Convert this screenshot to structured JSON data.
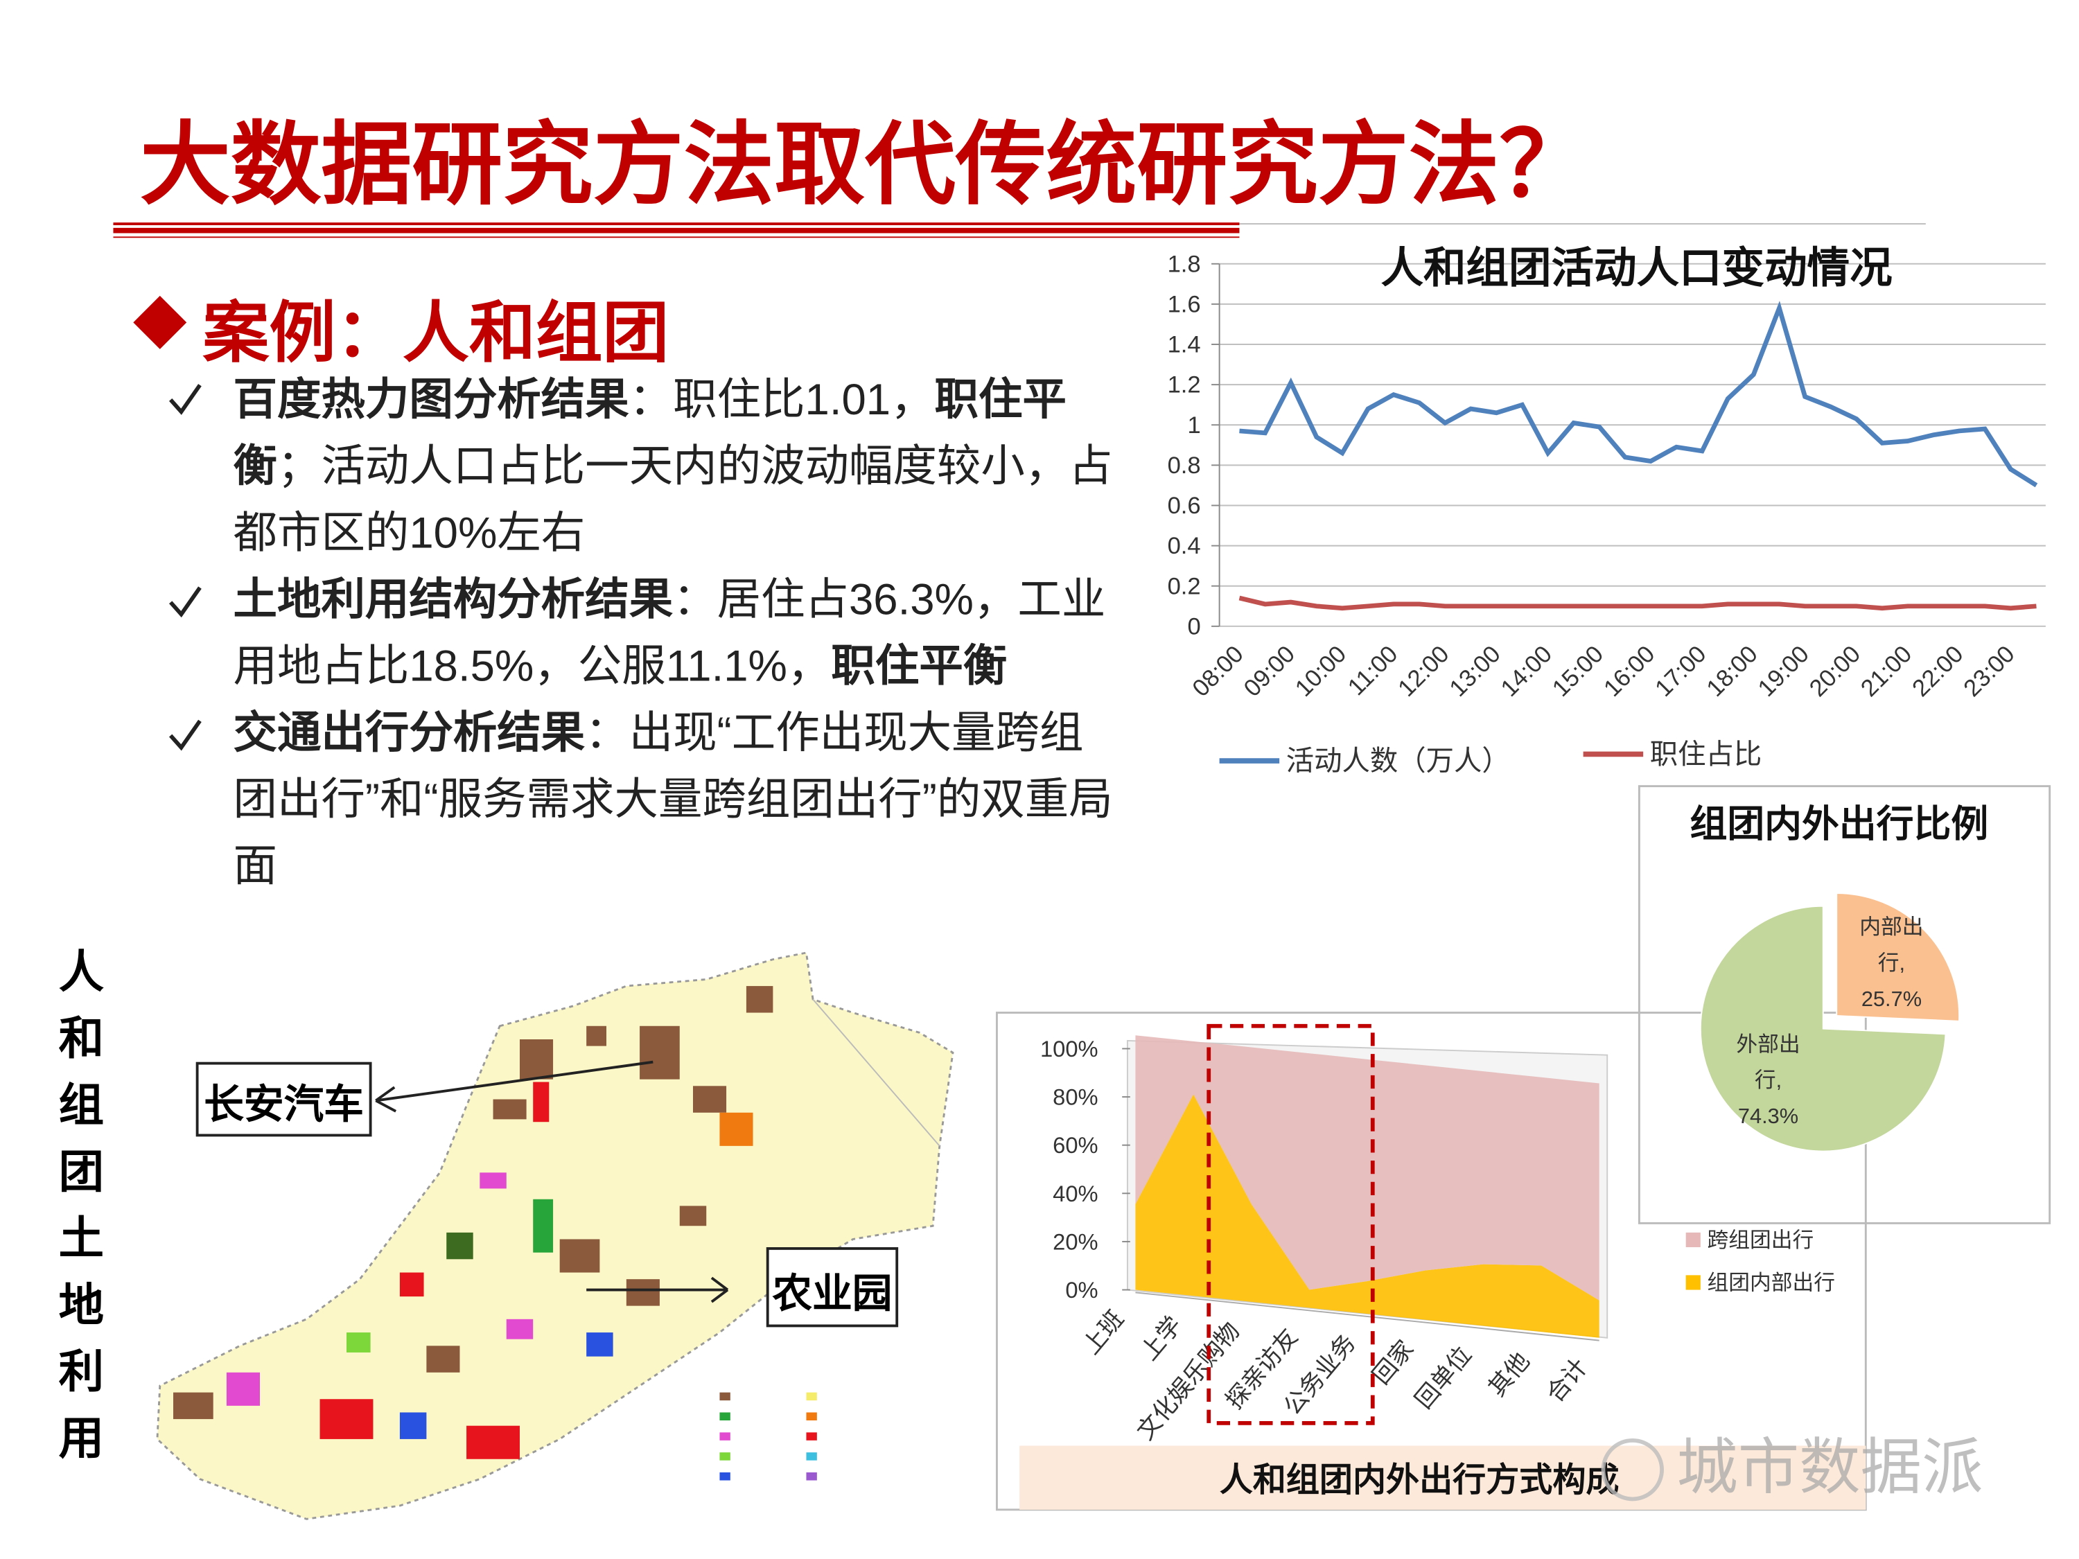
{
  "title": "大数据研究方法取代传统研究方法？",
  "case_heading": "案例：人和组团",
  "bullets": [
    [
      {
        "text": "百度热力图分析结果",
        "bold": true
      },
      {
        "text": "：职住比1.01，",
        "bold": false
      },
      {
        "text": "职住平衡",
        "bold": true
      },
      {
        "text": "；活动人口占比一天内的波动幅度较小，占都市区的10%左右",
        "bold": false
      }
    ],
    [
      {
        "text": "土地利用结构分析结果",
        "bold": true
      },
      {
        "text": "：居住占36.3%，工业用地占比18.5%，公服11.1%，",
        "bold": false
      },
      {
        "text": "职住平衡",
        "bold": true
      }
    ],
    [
      {
        "text": "交通出行分析结果",
        "bold": true
      },
      {
        "text": "：出现“工作出现大量跨组团出行”和“服务需求大量跨组团出行”的双重局面",
        "bold": false
      }
    ]
  ],
  "map_side_label": "人和组团土地利用",
  "map_labels": [
    "长安汽车",
    "农业园"
  ],
  "watermark": "城市数据派",
  "chart_data": [
    {
      "type": "line",
      "title": "人和组团活动人口变动情况",
      "categories": [
        "08:00",
        null,
        "09:00",
        null,
        "10:00",
        null,
        "11:00",
        null,
        "12:00",
        null,
        "13:00",
        null,
        "14:00",
        null,
        "15:00",
        null,
        "16:00",
        null,
        "17:00",
        null,
        "18:00",
        null,
        "19:00",
        null,
        "20:00",
        null,
        "21:00",
        null,
        "22:00",
        null,
        "23:00",
        null
      ],
      "series": [
        {
          "name": "活动人数（万人）",
          "color": "#4f81bd",
          "values": [
            0.97,
            0.96,
            1.21,
            0.94,
            0.86,
            1.08,
            1.15,
            1.11,
            1.01,
            1.08,
            1.06,
            1.1,
            0.86,
            1.01,
            0.99,
            0.84,
            0.82,
            0.89,
            0.87,
            1.13,
            1.25,
            1.58,
            1.14,
            1.09,
            1.03,
            0.91,
            0.92,
            0.95,
            0.97,
            0.98,
            0.78,
            0.7
          ]
        },
        {
          "name": "职住占比",
          "color": "#c0504d",
          "values": [
            0.14,
            0.11,
            0.12,
            0.1,
            0.09,
            0.1,
            0.11,
            0.11,
            0.1,
            0.1,
            0.1,
            0.1,
            0.1,
            0.1,
            0.1,
            0.1,
            0.1,
            0.1,
            0.1,
            0.11,
            0.11,
            0.11,
            0.1,
            0.1,
            0.1,
            0.09,
            0.1,
            0.1,
            0.1,
            0.1,
            0.09,
            0.1
          ]
        }
      ],
      "ylim": [
        0,
        1.8
      ],
      "yticks": [
        0,
        0.2,
        0.4,
        0.6,
        0.8,
        1,
        1.2,
        1.4,
        1.6,
        1.8
      ],
      "grid": true,
      "legend": "bottom"
    },
    {
      "type": "pie",
      "title": "组团内外出行比例",
      "values": [
        25.7,
        74.3
      ],
      "value_labels": [
        "内部出行, 25.7%",
        "外部出行, 74.3%"
      ],
      "colors": [
        "#fac090",
        "#c3d69b"
      ],
      "explode": [
        true,
        false
      ]
    },
    {
      "type": "area",
      "title": "人和组团内外出行方式构成",
      "stacked": true,
      "categories": [
        "上班",
        "上学",
        "文化娱乐购物",
        "探亲访友",
        "公务业务",
        "回家",
        "回单位",
        "其他",
        "合计"
      ],
      "series": [
        {
          "name": "跨组团出行",
          "color": "#e6b9b8",
          "values": [
            70,
            22,
            65,
            98,
            92,
            85,
            80,
            78,
            90
          ]
        },
        {
          "name": "组团内部出行",
          "color": "#ffc000",
          "values": [
            30,
            78,
            35,
            2,
            8,
            15,
            20,
            22,
            10
          ]
        }
      ],
      "ylim": [
        0,
        100
      ],
      "yticks": [
        {
          "value": 0,
          "label": "0%"
        },
        {
          "value": 20,
          "label": "20%"
        },
        {
          "value": 40,
          "label": "40%"
        },
        {
          "value": 60,
          "label": "60%"
        },
        {
          "value": 80,
          "label": "80%"
        },
        {
          "value": 100,
          "label": "100%"
        }
      ],
      "legend": "right"
    }
  ]
}
